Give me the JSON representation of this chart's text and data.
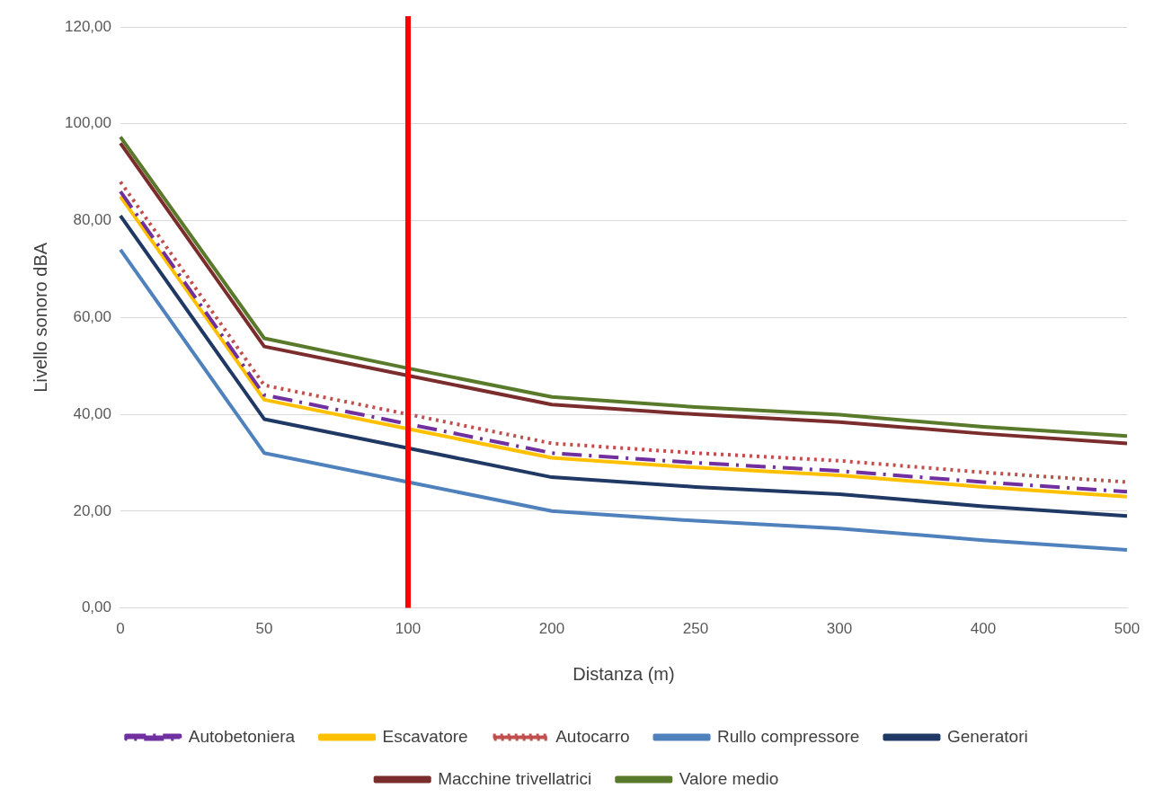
{
  "chart_data": {
    "type": "line",
    "xlabel": "Distanza (m)",
    "ylabel": "Livello sonoro dBA",
    "categories": [
      "0",
      "50",
      "100",
      "200",
      "250",
      "300",
      "400",
      "500"
    ],
    "ylim": [
      0,
      120
    ],
    "yticks": [
      {
        "value": 0,
        "label": "0,00"
      },
      {
        "value": 20,
        "label": "20,00"
      },
      {
        "value": 40,
        "label": "40,00"
      },
      {
        "value": 60,
        "label": "60,00"
      },
      {
        "value": 80,
        "label": "80,00"
      },
      {
        "value": 100,
        "label": "100,00"
      },
      {
        "value": 120,
        "label": "120,00"
      }
    ],
    "grid": "y",
    "legend": "bottom",
    "marker": "none",
    "ref_lines": [
      {
        "axis": "x",
        "value": "100",
        "color": "#ff0000"
      }
    ],
    "series": [
      {
        "name": "Autobetoniera",
        "color": "#7030a0",
        "line_style": "dashed",
        "values": [
          86,
          44,
          38,
          32,
          30,
          28.3,
          26,
          24
        ]
      },
      {
        "name": "Escavatore",
        "color": "#ffc000",
        "values": [
          85,
          43,
          37,
          31,
          29,
          27.4,
          25,
          23
        ]
      },
      {
        "name": "Autocarro",
        "color": "#c0504d",
        "line_style": "dotted",
        "values": [
          88,
          46,
          40,
          34,
          32,
          30.4,
          28,
          26
        ]
      },
      {
        "name": "Rullo compressore",
        "color": "#4f81bd",
        "values": [
          74,
          32,
          26,
          20,
          18,
          16.4,
          14,
          12
        ]
      },
      {
        "name": "Generatori",
        "color": "#1f3864",
        "values": [
          81,
          39,
          33,
          27,
          25,
          23.5,
          21,
          19
        ]
      },
      {
        "name": "Macchine trivellatrici",
        "color": "#7b2c2c",
        "values": [
          96,
          54,
          48,
          42,
          40,
          38.4,
          36,
          34
        ]
      },
      {
        "name": "Valore medio",
        "color": "#5a7a2b",
        "values": [
          97.3,
          55.7,
          49.5,
          43.6,
          41.5,
          39.9,
          37.4,
          35.5
        ]
      }
    ]
  }
}
